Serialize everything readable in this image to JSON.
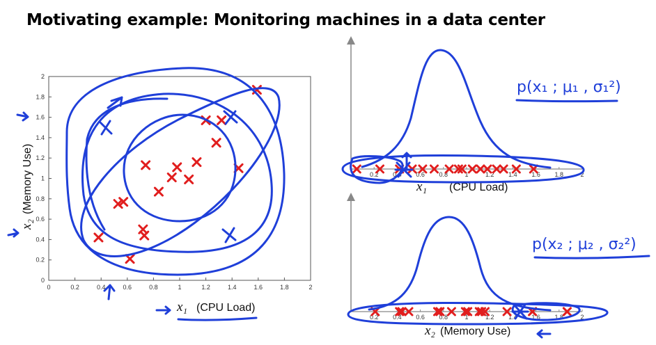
{
  "slide": {
    "title": "Motivating example: Monitoring machines in a data center"
  },
  "colors": {
    "marker": "#e11e1e",
    "ink": "#1f3fd9",
    "axis": "#777777"
  },
  "chart_data": [
    {
      "type": "scatter",
      "xlabel_var": "x₁",
      "xlabel_text": "(CPU Load)",
      "ylabel_var": "x₂",
      "ylabel_text": "(Memory Use)",
      "xlim": [
        0,
        2
      ],
      "ylim": [
        0,
        2
      ],
      "xticks": [
        "0",
        "0.2",
        "0.4",
        "0.6",
        "0.8",
        "1",
        "1.2",
        "1.4",
        "1.6",
        "1.8",
        "2"
      ],
      "yticks": [
        "0",
        "0.2",
        "0.4",
        "0.6",
        "0.8",
        "1",
        "1.2",
        "1.4",
        "1.6",
        "1.8",
        "2"
      ],
      "grid": false,
      "points": [
        {
          "x": 0.38,
          "y": 0.42
        },
        {
          "x": 0.53,
          "y": 0.75
        },
        {
          "x": 0.57,
          "y": 0.77
        },
        {
          "x": 0.62,
          "y": 0.21
        },
        {
          "x": 0.72,
          "y": 0.5
        },
        {
          "x": 0.73,
          "y": 0.44
        },
        {
          "x": 0.74,
          "y": 1.13
        },
        {
          "x": 0.84,
          "y": 0.87
        },
        {
          "x": 0.94,
          "y": 1.01
        },
        {
          "x": 0.98,
          "y": 1.11
        },
        {
          "x": 1.07,
          "y": 0.99
        },
        {
          "x": 1.13,
          "y": 1.16
        },
        {
          "x": 1.2,
          "y": 1.57
        },
        {
          "x": 1.28,
          "y": 1.35
        },
        {
          "x": 1.32,
          "y": 1.57
        },
        {
          "x": 1.45,
          "y": 1.1
        },
        {
          "x": 1.59,
          "y": 1.87
        }
      ]
    },
    {
      "type": "scatter",
      "xlabel_var": "x₁",
      "xlabel_text": "(CPU Load)",
      "xlim": [
        0,
        2
      ],
      "xticks": [
        "0.2",
        "0.4",
        "0.6",
        "0.8",
        "1",
        "1.2",
        "1.4",
        "1.6",
        "1.8",
        "2"
      ],
      "annotation": "p(x₁ ; μ₁ , σ₁²)",
      "points_x": [
        0.05,
        0.25,
        0.42,
        0.53,
        0.62,
        0.72,
        0.85,
        0.93,
        0.96,
        1.05,
        1.12,
        1.18,
        1.26,
        1.32,
        1.43,
        1.58
      ]
    },
    {
      "type": "scatter",
      "xlabel_var": "x₂",
      "xlabel_text": "(Memory Use)",
      "xlim": [
        0,
        2
      ],
      "xticks": [
        "0.2",
        "0.4",
        "0.6",
        "0.8",
        "1",
        "1.2",
        "1.4",
        "1.6",
        "1.8",
        "2"
      ],
      "annotation": "p(x₂ ; μ₂ , σ₂²)",
      "points_x": [
        0.21,
        0.42,
        0.44,
        0.5,
        0.75,
        0.77,
        0.87,
        0.99,
        1.01,
        1.11,
        1.13,
        1.16,
        1.35,
        1.57,
        1.57,
        1.87,
        1.87
      ]
    }
  ]
}
